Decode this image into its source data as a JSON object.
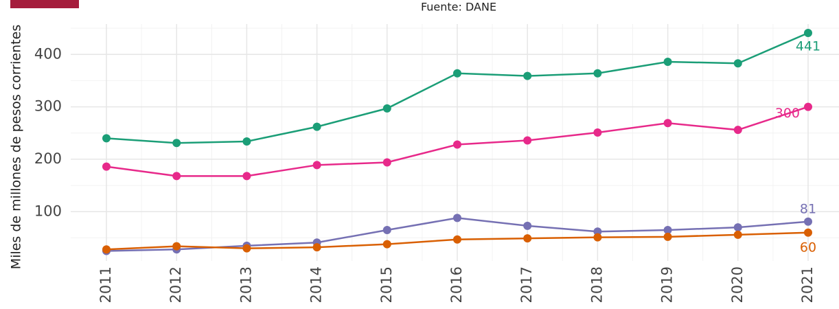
{
  "chart_data": {
    "type": "line",
    "subtitle": "Fuente: DANE",
    "y_label": "Miles de millones de pesos corrientes",
    "x": [
      "2011",
      "2012",
      "2013",
      "2014",
      "2015",
      "2016",
      "2017",
      "2018",
      "2019",
      "2020",
      "2021"
    ],
    "series": [
      {
        "color": "#1b9e77",
        "values": [
          240,
          231,
          234,
          262,
          297,
          364,
          359,
          364,
          386,
          383,
          441
        ]
      },
      {
        "color": "#e7298a",
        "values": [
          186,
          168,
          168,
          189,
          194,
          228,
          236,
          251,
          269,
          256,
          300
        ]
      },
      {
        "color": "#7570b3",
        "values": [
          25,
          28,
          35,
          41,
          65,
          88,
          73,
          62,
          65,
          70,
          81
        ]
      },
      {
        "color": "#d95f02",
        "values": [
          28,
          34,
          30,
          32,
          38,
          47,
          49,
          51,
          52,
          56,
          60
        ]
      }
    ],
    "ylim": [
      6,
      458
    ],
    "yticks": [
      100,
      200,
      300,
      400
    ],
    "grid": true,
    "end_labels": true
  }
}
